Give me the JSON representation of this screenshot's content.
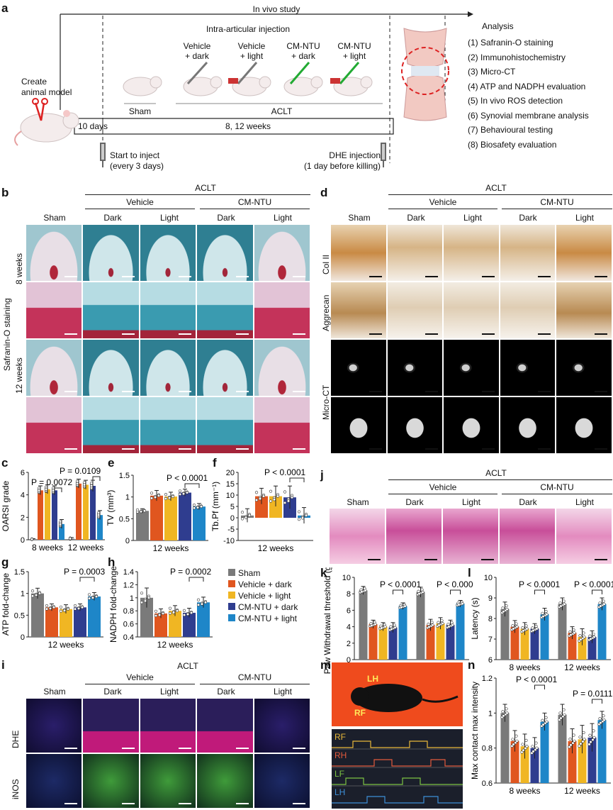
{
  "panel_letters": {
    "a": "a",
    "b": "b",
    "c": "c",
    "d": "d",
    "e": "e",
    "f": "f",
    "g": "g",
    "h": "h",
    "i": "i",
    "j": "j",
    "k": "k",
    "l": "l",
    "m": "m",
    "n": "n"
  },
  "panel_a": {
    "study_title": "In vivo study",
    "injection_title": "Intra-articular injection",
    "create_model": "Create\nanimal model",
    "groups": [
      "Vehicle\n+ dark",
      "Vehicle\n+ light",
      "CM-NTU\n+ dark",
      "CM-NTU\n+ light"
    ],
    "sham": "Sham",
    "aclt": "ACLT",
    "days": "10 days",
    "weeks": "8, 12 weeks",
    "start_inject": "Start to inject\n(every 3 days)",
    "dhe_inject": "DHE injection\n(1 day before killing)",
    "analysis_title": "Analysis",
    "analysis_items": [
      "(1) Safranin-O staining",
      "(2) Immunohistochemistry",
      "(3) Micro-CT",
      "(4) ATP and NADPH evaluation",
      "(5) In vivo ROS detection",
      "(6) Synovial membrane analysis",
      "(7) Behavioural testing",
      "(8) Biosafety evaluation"
    ]
  },
  "headers": {
    "aclt": "ACLT",
    "vehicle": "Vehicle",
    "cmntu": "CM-NTU",
    "sham": "Sham",
    "dark": "Dark",
    "light": "Light"
  },
  "panel_b": {
    "row_label": "Safranin-O staining",
    "weeks8": "8 weeks",
    "weeks12": "12 weeks"
  },
  "panel_d": {
    "rows": [
      "Col II",
      "Aggrecan",
      "Micro-CT"
    ]
  },
  "panel_i": {
    "rows": [
      "DHE",
      "iNOS"
    ]
  },
  "panel_m": {
    "mouse_labels": [
      "LH",
      "RF"
    ],
    "gait": [
      "RF",
      "RH",
      "LF",
      "LH"
    ]
  },
  "legend": [
    "Sham",
    "Vehicle + dark",
    "Vehicle + light",
    "CM-NTU + dark",
    "CM-NTU + light"
  ],
  "colors": {
    "sham": "#7a7a7a",
    "vdark": "#e0561f",
    "vlight": "#f0b623",
    "cdark": "#2f3d8f",
    "clight": "#1e86c8"
  },
  "chart_data": [
    {
      "id": "c",
      "type": "bar",
      "ylabel": "OARSI grade",
      "groups": [
        "8 weeks",
        "12 weeks"
      ],
      "ylim": [
        0,
        6
      ],
      "yticks": [
        0,
        2,
        4,
        6
      ],
      "values": [
        [
          0.05,
          4.4,
          4.5,
          4.4,
          1.4
        ],
        [
          0.1,
          5.0,
          4.9,
          4.8,
          2.2
        ]
      ],
      "errors": [
        [
          0.05,
          0.4,
          0.4,
          0.4,
          0.4
        ],
        [
          0.1,
          0.4,
          0.4,
          0.5,
          0.4
        ]
      ],
      "annotations": [
        "P = 0.0072",
        "P = 0.0109"
      ]
    },
    {
      "id": "e",
      "type": "bar",
      "ylabel": "TV (mm³)",
      "xlabel": "12 weeks",
      "ylim": [
        0,
        1.5
      ],
      "yticks": [
        0,
        0.5,
        1.0,
        1.5
      ],
      "values": [
        0.68,
        1.03,
        1.01,
        1.1,
        0.78
      ],
      "errors": [
        0.05,
        0.12,
        0.1,
        0.08,
        0.07
      ],
      "annotations": [
        "P < 0.0001"
      ]
    },
    {
      "id": "f",
      "type": "bar",
      "ylabel": "Tb.Pf (mm⁻¹)",
      "xlabel": "12 weeks",
      "ylim": [
        -10,
        20
      ],
      "yticks": [
        -10,
        -5,
        0,
        5,
        10,
        15,
        20
      ],
      "values": [
        1.0,
        9.5,
        9.5,
        9.0,
        1.0
      ],
      "errors": [
        3.0,
        3.5,
        4.5,
        5.0,
        3.5
      ],
      "annotations": [
        "P < 0.0001"
      ]
    },
    {
      "id": "g",
      "type": "bar",
      "ylabel": "ATP fold-change",
      "xlabel": "12 weeks",
      "ylim": [
        0,
        1.5
      ],
      "yticks": [
        0,
        0.5,
        1.0,
        1.5
      ],
      "values": [
        1.0,
        0.68,
        0.64,
        0.68,
        0.93
      ],
      "errors": [
        0.12,
        0.08,
        0.1,
        0.08,
        0.09
      ],
      "annotations": [
        "P = 0.0003"
      ]
    },
    {
      "id": "h",
      "type": "bar",
      "ylabel": "NADPH fold-change",
      "xlabel": "12 weeks",
      "ylim": [
        0.4,
        1.4
      ],
      "yticks": [
        0.4,
        0.6,
        0.8,
        1.0,
        1.2,
        1.4
      ],
      "values": [
        1.0,
        0.76,
        0.8,
        0.77,
        0.93
      ],
      "errors": [
        0.15,
        0.07,
        0.08,
        0.07,
        0.08
      ],
      "annotations": [
        "P = 0.0002"
      ]
    },
    {
      "id": "k",
      "type": "bar",
      "ylabel": "Paw Withdrawal threshold (g)",
      "groups": [
        "8 weeks",
        "12 weeks"
      ],
      "ylim": [
        0,
        10
      ],
      "yticks": [
        0,
        2,
        4,
        6,
        8,
        10
      ],
      "values": [
        [
          8.4,
          4.3,
          4.0,
          3.9,
          6.5
        ],
        [
          8.2,
          4.2,
          4.4,
          4.2,
          6.8
        ]
      ],
      "errors": [
        [
          0.5,
          0.5,
          0.5,
          0.6,
          0.4
        ],
        [
          0.6,
          0.7,
          0.7,
          0.6,
          0.4
        ]
      ],
      "annotations": [
        "P < 0.0001",
        "P < 0.0001"
      ]
    },
    {
      "id": "l",
      "type": "bar",
      "ylabel": "Latency (s)",
      "groups": [
        "8 weeks",
        "12 weeks"
      ],
      "ylim": [
        6,
        10
      ],
      "yticks": [
        6,
        7,
        8,
        9,
        10
      ],
      "values": [
        [
          8.45,
          7.6,
          7.5,
          7.5,
          8.2
        ],
        [
          8.7,
          7.3,
          7.1,
          7.1,
          8.7
        ]
      ],
      "errors": [
        [
          0.35,
          0.3,
          0.3,
          0.25,
          0.3
        ],
        [
          0.3,
          0.3,
          0.4,
          0.3,
          0.3
        ]
      ],
      "annotations": [
        "P < 0.0001",
        "P < 0.0001"
      ]
    },
    {
      "id": "n",
      "type": "bar",
      "ylabel": "Max contact max intensity",
      "groups": [
        "8 weeks",
        "12 weeks"
      ],
      "ylim": [
        0.6,
        1.2
      ],
      "yticks": [
        0.6,
        0.8,
        1.0,
        1.2
      ],
      "values": [
        [
          1.0,
          0.84,
          0.81,
          0.8,
          0.95
        ],
        [
          0.99,
          0.84,
          0.85,
          0.86,
          0.96
        ]
      ],
      "errors": [
        [
          0.05,
          0.06,
          0.07,
          0.06,
          0.05
        ],
        [
          0.06,
          0.07,
          0.08,
          0.08,
          0.05
        ]
      ],
      "annotations": [
        "P < 0.0001",
        "P = 0.0111"
      ]
    }
  ]
}
